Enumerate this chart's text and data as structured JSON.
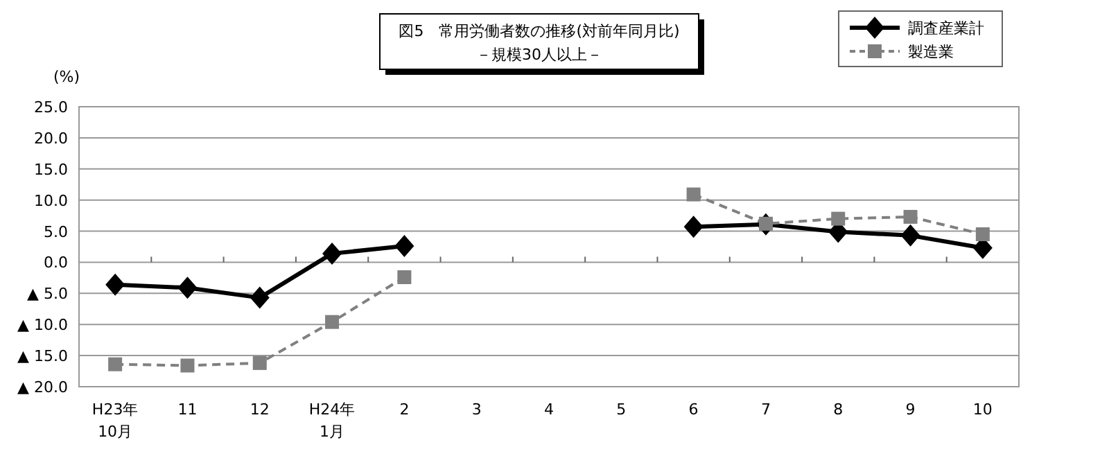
{
  "chart_data": {
    "type": "line",
    "title": "図5　常用労働者数の推移(対前年同月比)",
    "subtitle": "－規模30人以上－",
    "ylabel": "(%)",
    "categories": [
      "H23年\n10月",
      "11",
      "12",
      "H24年\n1月",
      "2",
      "3",
      "4",
      "5",
      "6",
      "7",
      "8",
      "9",
      "10"
    ],
    "series": [
      {
        "name": "調査産業計",
        "color": "#000000",
        "marker": "diamond",
        "line_style": "solid",
        "values": [
          -3.6,
          -4.1,
          -5.7,
          1.4,
          2.6,
          null,
          null,
          null,
          5.7,
          6.1,
          4.9,
          4.3,
          2.3
        ]
      },
      {
        "name": "製造業",
        "color": "#808080",
        "marker": "square",
        "line_style": "dashed",
        "values": [
          -16.4,
          -16.6,
          -16.2,
          -9.6,
          -2.4,
          null,
          null,
          null,
          10.9,
          6.2,
          7.0,
          7.3,
          4.5
        ]
      }
    ],
    "ylim": [
      -20,
      25
    ],
    "yticks": [
      {
        "value": 25,
        "label": "25.0"
      },
      {
        "value": 20,
        "label": "20.0"
      },
      {
        "value": 15,
        "label": "15.0"
      },
      {
        "value": 10,
        "label": "10.0"
      },
      {
        "value": 5,
        "label": "5.0"
      },
      {
        "value": 0,
        "label": "0.0"
      },
      {
        "value": -5,
        "label": "▲ 5.0"
      },
      {
        "value": -10,
        "label": "▲ 10.0"
      },
      {
        "value": -15,
        "label": "▲ 15.0"
      },
      {
        "value": -20,
        "label": "▲ 20.0"
      }
    ],
    "grid": "y",
    "legend": "top right"
  }
}
